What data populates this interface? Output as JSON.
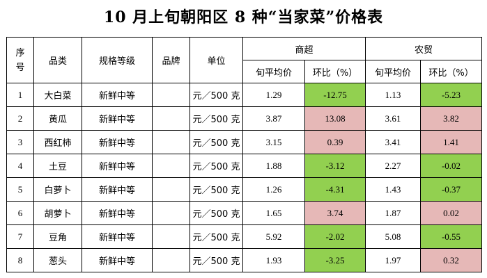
{
  "title": "10 月上旬朝阳区 8 种“当家菜”价格表",
  "header": {
    "seq_line1": "序",
    "seq_line2": "号",
    "category": "品类",
    "grade": "规格等级",
    "brand": "品牌",
    "unit": "单位",
    "supermarket": "商超",
    "farmers_market": "农贸",
    "avg_price": "旬平均价",
    "mom": "环比（%）"
  },
  "colors": {
    "increase": "#e6b8b7",
    "decrease": "#92d050"
  },
  "rows": [
    {
      "seq": "1",
      "name": "大白菜",
      "grade": "新鲜中等",
      "brand": "",
      "unit": "元／500 克",
      "sm_price": "1.29",
      "sm_mom": "-12.75",
      "sm_trend": "down",
      "fm_price": "1.13",
      "fm_mom": "-5.23",
      "fm_trend": "down"
    },
    {
      "seq": "2",
      "name": "黄瓜",
      "grade": "新鲜中等",
      "brand": "",
      "unit": "元／500 克",
      "sm_price": "3.87",
      "sm_mom": "13.08",
      "sm_trend": "up",
      "fm_price": "3.61",
      "fm_mom": "3.82",
      "fm_trend": "up"
    },
    {
      "seq": "3",
      "name": "西红柿",
      "grade": "新鲜中等",
      "brand": "",
      "unit": "元／500 克",
      "sm_price": "3.15",
      "sm_mom": "0.39",
      "sm_trend": "up",
      "fm_price": "3.41",
      "fm_mom": "1.41",
      "fm_trend": "up"
    },
    {
      "seq": "4",
      "name": "土豆",
      "grade": "新鲜中等",
      "brand": "",
      "unit": "元／500 克",
      "sm_price": "1.88",
      "sm_mom": "-3.12",
      "sm_trend": "down",
      "fm_price": "2.27",
      "fm_mom": "-0.02",
      "fm_trend": "down"
    },
    {
      "seq": "5",
      "name": "白萝卜",
      "grade": "新鲜中等",
      "brand": "",
      "unit": "元／500 克",
      "sm_price": "1.26",
      "sm_mom": "-4.31",
      "sm_trend": "down",
      "fm_price": "1.43",
      "fm_mom": "-0.37",
      "fm_trend": "down"
    },
    {
      "seq": "6",
      "name": "胡萝卜",
      "grade": "新鲜中等",
      "brand": "",
      "unit": "元／500 克",
      "sm_price": "1.65",
      "sm_mom": "3.74",
      "sm_trend": "up",
      "fm_price": "1.87",
      "fm_mom": "0.02",
      "fm_trend": "up"
    },
    {
      "seq": "7",
      "name": "豆角",
      "grade": "新鲜中等",
      "brand": "",
      "unit": "元／500 克",
      "sm_price": "5.92",
      "sm_mom": "-2.02",
      "sm_trend": "down",
      "fm_price": "5.08",
      "fm_mom": "-0.55",
      "fm_trend": "down"
    },
    {
      "seq": "8",
      "name": "葱头",
      "grade": "新鲜中等",
      "brand": "",
      "unit": "元／500 克",
      "sm_price": "1.93",
      "sm_mom": "-3.25",
      "sm_trend": "down",
      "fm_price": "1.97",
      "fm_mom": "0.32",
      "fm_trend": "up"
    }
  ]
}
